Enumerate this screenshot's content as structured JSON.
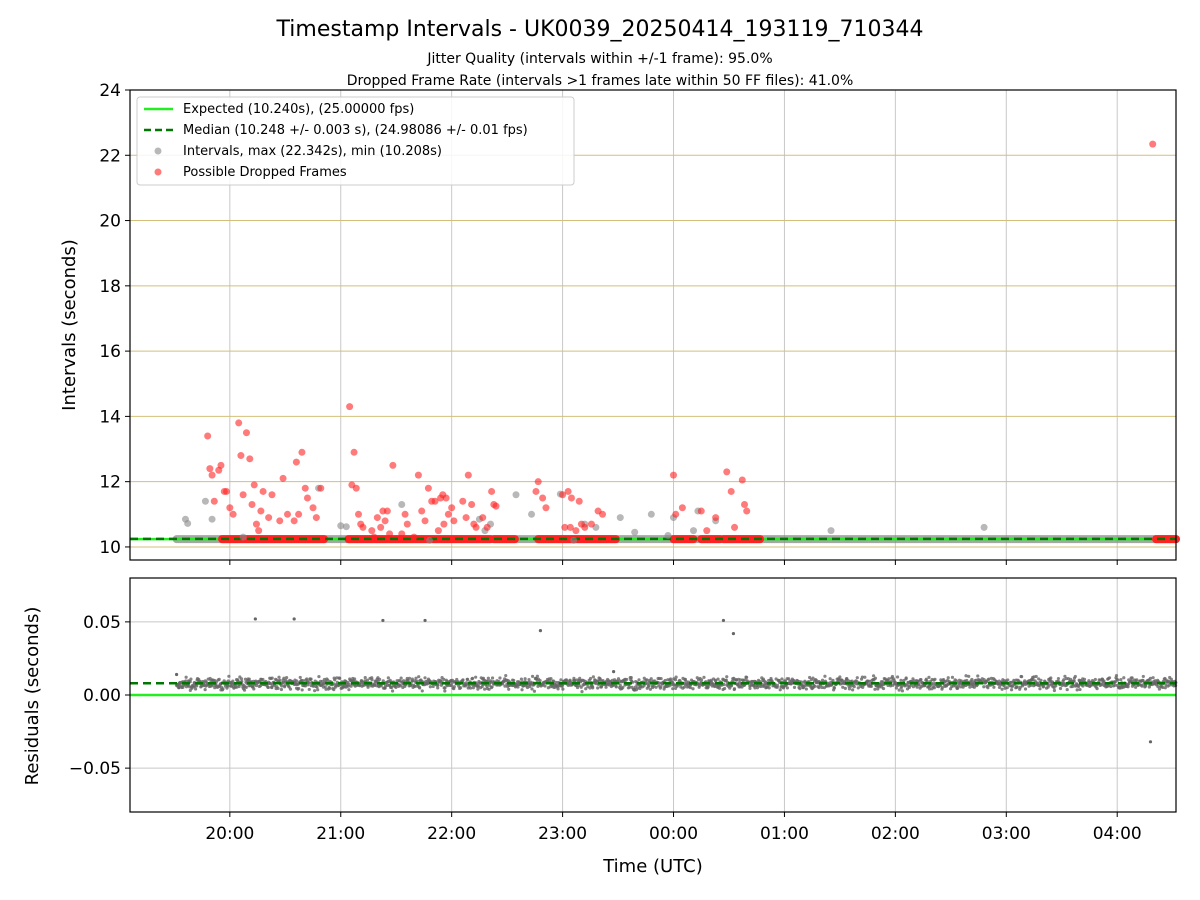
{
  "chart_data": [
    {
      "type": "scatter",
      "title": "Timestamp Intervals - UK0039_20250414_193119_710344",
      "subtitle_lines": [
        "Jitter Quality (intervals within +/-1 frame): 95.0%",
        "Dropped Frame Rate (intervals >1 frames late within 50 FF files): 41.0%"
      ],
      "xlabel": "",
      "ylabel": "Intervals (seconds)",
      "xlim_hours": [
        19.1,
        28.53
      ],
      "ylim": [
        9.6,
        24
      ],
      "x_ticks_hours": [
        20,
        21,
        22,
        23,
        24,
        25,
        26,
        27,
        28
      ],
      "x_tick_labels": [
        "20:00",
        "21:00",
        "22:00",
        "23:00",
        "00:00",
        "01:00",
        "02:00",
        "03:00",
        "04:00"
      ],
      "y_ticks": [
        10,
        12,
        14,
        16,
        18,
        20,
        22,
        24
      ],
      "y_tick_labels": [
        "10",
        "12",
        "14",
        "16",
        "18",
        "20",
        "22",
        "24"
      ],
      "grid": true,
      "legend_position": "upper-left",
      "legend": [
        "Expected (10.240s), (25.00000 fps)",
        "Median (10.248 +/- 0.003 s), (24.98086 +/- 0.01 fps)",
        "Intervals, max (22.342s), min (10.208s)",
        "Possible Dropped Frames"
      ],
      "expected_value": 10.24,
      "median_value": 10.248,
      "colors": {
        "expected": "#22ee22",
        "median": "#007700",
        "intervals": "#888888",
        "dropped": "#ff2222",
        "hgrid": "#d4bf7a",
        "vgrid": "#c8c8c8"
      },
      "baseline_intervals": {
        "x_start": 19.52,
        "x_end": 28.53,
        "y": 10.24
      },
      "dropped_baseline_segments": [
        [
          19.93,
          20.85
        ],
        [
          21.07,
          22.35
        ],
        [
          22.38,
          22.57
        ],
        [
          22.78,
          23.48
        ],
        [
          24.0,
          24.18
        ],
        [
          24.25,
          24.42
        ],
        [
          24.45,
          24.78
        ],
        [
          28.35,
          28.53
        ]
      ],
      "intervals_points": [
        [
          19.6,
          10.85
        ],
        [
          19.62,
          10.72
        ],
        [
          19.78,
          11.4
        ],
        [
          19.84,
          10.85
        ],
        [
          20.12,
          10.3
        ],
        [
          20.8,
          11.8
        ],
        [
          21.0,
          10.65
        ],
        [
          21.05,
          10.62
        ],
        [
          21.55,
          11.3
        ],
        [
          21.8,
          10.2
        ],
        [
          22.25,
          10.85
        ],
        [
          22.3,
          10.5
        ],
        [
          22.35,
          10.7
        ],
        [
          22.58,
          11.6
        ],
        [
          22.72,
          11.0
        ],
        [
          22.98,
          11.62
        ],
        [
          23.1,
          10.2
        ],
        [
          23.2,
          10.7
        ],
        [
          23.3,
          10.6
        ],
        [
          23.52,
          10.9
        ],
        [
          23.65,
          10.45
        ],
        [
          23.8,
          11.0
        ],
        [
          23.95,
          10.35
        ],
        [
          24.0,
          10.9
        ],
        [
          24.18,
          10.5
        ],
        [
          24.22,
          11.1
        ],
        [
          24.38,
          10.8
        ],
        [
          25.42,
          10.5
        ],
        [
          26.8,
          10.6
        ]
      ],
      "dropped_points": [
        [
          19.8,
          13.4
        ],
        [
          19.82,
          12.4
        ],
        [
          19.84,
          12.2
        ],
        [
          19.86,
          11.4
        ],
        [
          19.9,
          12.35
        ],
        [
          19.92,
          12.5
        ],
        [
          19.95,
          11.7
        ],
        [
          19.97,
          11.7
        ],
        [
          20.0,
          11.2
        ],
        [
          20.03,
          11.0
        ],
        [
          20.08,
          13.8
        ],
        [
          20.1,
          12.8
        ],
        [
          20.12,
          11.6
        ],
        [
          20.15,
          13.5
        ],
        [
          20.18,
          12.7
        ],
        [
          20.2,
          11.3
        ],
        [
          20.22,
          11.9
        ],
        [
          20.24,
          10.7
        ],
        [
          20.26,
          10.5
        ],
        [
          20.28,
          11.1
        ],
        [
          20.3,
          11.7
        ],
        [
          20.35,
          10.9
        ],
        [
          20.38,
          11.6
        ],
        [
          20.45,
          10.8
        ],
        [
          20.48,
          12.1
        ],
        [
          20.52,
          11.0
        ],
        [
          20.58,
          10.8
        ],
        [
          20.6,
          12.6
        ],
        [
          20.62,
          11.0
        ],
        [
          20.65,
          12.9
        ],
        [
          20.68,
          11.8
        ],
        [
          20.7,
          11.5
        ],
        [
          20.75,
          11.2
        ],
        [
          20.78,
          10.9
        ],
        [
          20.82,
          11.8
        ],
        [
          21.08,
          14.3
        ],
        [
          21.1,
          11.9
        ],
        [
          21.12,
          12.9
        ],
        [
          21.14,
          11.8
        ],
        [
          21.16,
          11.0
        ],
        [
          21.18,
          10.7
        ],
        [
          21.2,
          10.6
        ],
        [
          21.28,
          10.5
        ],
        [
          21.3,
          10.3
        ],
        [
          21.33,
          10.9
        ],
        [
          21.36,
          10.6
        ],
        [
          21.38,
          11.1
        ],
        [
          21.4,
          10.8
        ],
        [
          21.42,
          11.1
        ],
        [
          21.44,
          10.4
        ],
        [
          21.47,
          12.5
        ],
        [
          21.55,
          10.4
        ],
        [
          21.58,
          11.0
        ],
        [
          21.6,
          10.7
        ],
        [
          21.66,
          10.3
        ],
        [
          21.7,
          12.2
        ],
        [
          21.73,
          11.1
        ],
        [
          21.76,
          10.8
        ],
        [
          21.79,
          11.8
        ],
        [
          21.82,
          11.4
        ],
        [
          21.85,
          11.4
        ],
        [
          21.88,
          10.5
        ],
        [
          21.9,
          11.5
        ],
        [
          21.92,
          11.6
        ],
        [
          21.93,
          10.7
        ],
        [
          21.95,
          11.5
        ],
        [
          21.97,
          11.0
        ],
        [
          22.0,
          11.2
        ],
        [
          22.02,
          10.8
        ],
        [
          22.1,
          11.4
        ],
        [
          22.13,
          10.9
        ],
        [
          22.15,
          12.2
        ],
        [
          22.18,
          11.3
        ],
        [
          22.2,
          10.7
        ],
        [
          22.22,
          10.6
        ],
        [
          22.28,
          10.9
        ],
        [
          22.32,
          10.6
        ],
        [
          22.36,
          11.7
        ],
        [
          22.38,
          11.3
        ],
        [
          22.4,
          11.25
        ],
        [
          22.76,
          11.7
        ],
        [
          22.78,
          12.0
        ],
        [
          22.82,
          11.5
        ],
        [
          22.85,
          11.2
        ],
        [
          23.0,
          11.6
        ],
        [
          23.02,
          10.6
        ],
        [
          23.05,
          11.7
        ],
        [
          23.07,
          10.6
        ],
        [
          23.08,
          11.5
        ],
        [
          23.12,
          10.5
        ],
        [
          23.15,
          11.4
        ],
        [
          23.17,
          10.7
        ],
        [
          23.2,
          10.6
        ],
        [
          23.26,
          10.7
        ],
        [
          23.32,
          11.1
        ],
        [
          23.36,
          11.0
        ],
        [
          24.0,
          12.2
        ],
        [
          24.02,
          11.0
        ],
        [
          24.08,
          11.2
        ],
        [
          24.25,
          11.1
        ],
        [
          24.3,
          10.5
        ],
        [
          24.38,
          10.9
        ],
        [
          24.48,
          12.3
        ],
        [
          24.52,
          11.7
        ],
        [
          24.55,
          10.6
        ],
        [
          24.62,
          12.05
        ],
        [
          24.64,
          11.3
        ],
        [
          24.66,
          11.1
        ],
        [
          28.32,
          22.342
        ]
      ]
    },
    {
      "type": "scatter",
      "xlabel": "Time (UTC)",
      "ylabel": "Residuals (seconds)",
      "xlim_hours": [
        19.1,
        28.53
      ],
      "ylim": [
        -0.08,
        0.08
      ],
      "y_ticks": [
        -0.05,
        0.0,
        0.05
      ],
      "y_tick_labels": [
        "−0.05",
        "0.00",
        "0.05"
      ],
      "grid": true,
      "expected_residual": 0.0,
      "median_residual": 0.008,
      "colors": {
        "points": "#666666",
        "expected": "#22ee22",
        "median": "#007700"
      },
      "dense_band": {
        "x_start": 19.52,
        "x_end": 28.53,
        "center": 0.008,
        "spread": 0.004
      },
      "outliers": [
        [
          19.52,
          0.014
        ],
        [
          19.54,
          0.005
        ],
        [
          20.23,
          0.052
        ],
        [
          20.58,
          0.052
        ],
        [
          21.38,
          0.051
        ],
        [
          21.76,
          0.051
        ],
        [
          22.8,
          0.044
        ],
        [
          23.46,
          0.016
        ],
        [
          24.45,
          0.051
        ],
        [
          24.54,
          0.042
        ],
        [
          28.3,
          -0.032
        ]
      ]
    }
  ]
}
